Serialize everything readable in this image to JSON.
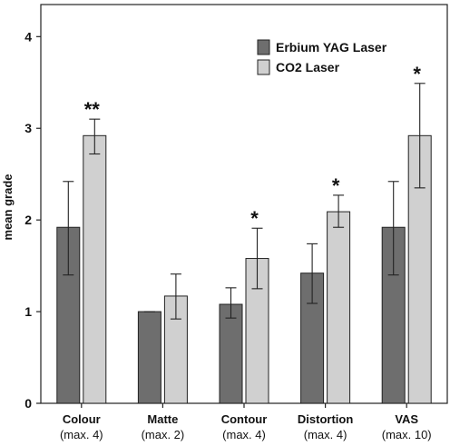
{
  "chart_data": {
    "type": "bar",
    "categories": [
      "Colour",
      "Matte",
      "Contour",
      "Distortion",
      "VAS"
    ],
    "category_sublabels": [
      "(max. 4)",
      "(max. 2)",
      "(max. 4)",
      "(max. 4)",
      "(max. 10)"
    ],
    "ylabel": "mean grade",
    "xlabel": "",
    "ylim": [
      0,
      4.35
    ],
    "yticks": [
      0,
      1,
      2,
      3,
      4
    ],
    "grid": false,
    "legend_position": "top-right",
    "series": [
      {
        "name": "Erbium YAG Laser",
        "color": "#6e6e6e",
        "values": [
          1.92,
          1.0,
          1.08,
          1.42,
          1.92
        ],
        "error_low": [
          1.4,
          1.0,
          0.93,
          1.09,
          1.4
        ],
        "error_high": [
          2.42,
          1.0,
          1.26,
          1.74,
          2.42
        ]
      },
      {
        "name": "CO2 Laser",
        "color": "#d0d0d0",
        "values": [
          2.92,
          1.17,
          1.58,
          2.09,
          2.92
        ],
        "error_low": [
          2.72,
          0.92,
          1.25,
          1.92,
          2.35
        ],
        "error_high": [
          3.1,
          1.41,
          1.91,
          2.27,
          3.49
        ]
      }
    ],
    "annotations": [
      "**",
      "",
      "*",
      "*",
      "*"
    ]
  }
}
